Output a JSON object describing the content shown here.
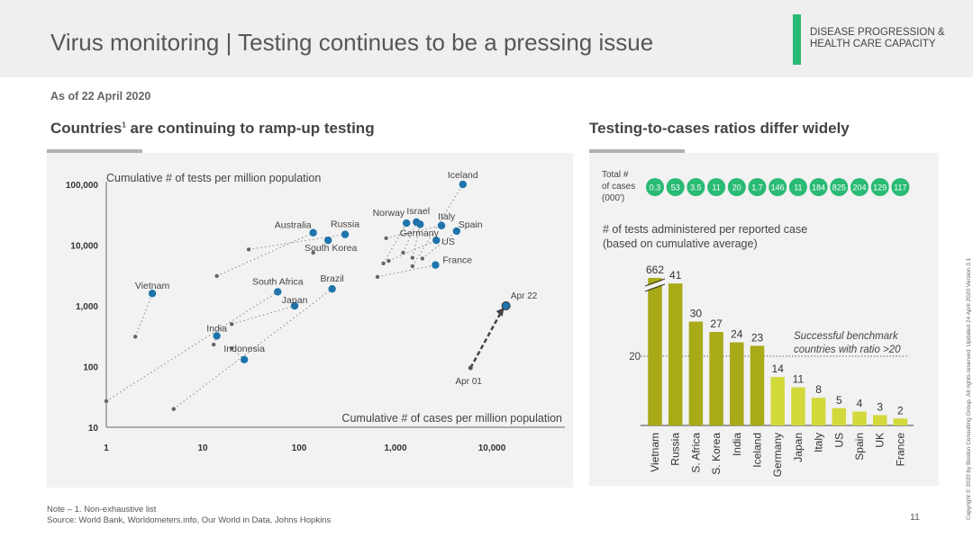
{
  "header": {
    "title": "Virus monitoring | Testing continues to be a pressing issue",
    "section_line1": "DISEASE PROGRESSION &",
    "section_line2": "HEALTH CARE CAPACITY"
  },
  "as_of": "As of 22 April 2020",
  "left_subtitle": "Countries",
  "left_subtitle_sup": "1",
  "left_subtitle_rest": " are continuing to ramp-up testing",
  "right_subtitle": "Testing-to-cases ratios differ widely",
  "footnote_note": "Note – 1. Non-exhaustive list",
  "footnote_source": "Source: World Bank, Worldometers.info, Our World in Data, Johns Hopkins",
  "page_number": "11",
  "copyright": "Copyright © 2020 by Boston Consulting Group. All rights reserved.   Updated 24 April 2020 Version 3.1",
  "colors": {
    "accent_green": "#29ba74",
    "point_blue": "#1f74ab",
    "bar_olive": "#a8aa17",
    "bar_lime": "#d2d93b",
    "case_circle": "#29ba74"
  },
  "chart_data": [
    {
      "type": "scatter",
      "ylabel": "Cumulative # of tests per million population",
      "xlabel": "Cumulative # of cases per million population",
      "x_scale": "log",
      "y_scale": "log",
      "xlim": [
        1,
        10000
      ],
      "ylim": [
        10,
        100000
      ],
      "x_ticks": [
        1,
        10,
        100,
        1000,
        10000
      ],
      "x_tick_labels": [
        "1",
        "10",
        "100",
        "1,000",
        "10,000"
      ],
      "y_ticks": [
        10,
        100,
        1000,
        10000,
        100000
      ],
      "y_tick_labels": [
        "10",
        "100",
        "1,000",
        "10,000",
        "100,000"
      ],
      "countries": [
        {
          "name": "Iceland",
          "prev": [
            1500,
            4500
          ],
          "current": [
            5000,
            100000
          ]
        },
        {
          "name": "Norway",
          "prev": [
            750,
            5000
          ],
          "current": [
            1300,
            23000
          ]
        },
        {
          "name": "Israel",
          "prev": [
            1200,
            7500
          ],
          "current": [
            1650,
            24000
          ]
        },
        {
          "name": "Italy",
          "prev": [
            800,
            13000
          ],
          "current": [
            3000,
            21000
          ]
        },
        {
          "name": "Spain",
          "prev": [
            1900,
            6000
          ],
          "current": [
            4300,
            17000
          ]
        },
        {
          "name": "Germany",
          "prev": [
            1500,
            6200
          ],
          "current": [
            1800,
            22000
          ]
        },
        {
          "name": "US",
          "prev": [
            850,
            5500
          ],
          "current": [
            2650,
            12000
          ]
        },
        {
          "name": "France",
          "prev": [
            650,
            3000
          ],
          "current": [
            2600,
            4700
          ]
        },
        {
          "name": "Australia",
          "prev": [
            14,
            3100
          ],
          "current": [
            140,
            16000
          ]
        },
        {
          "name": "Russia",
          "prev": [
            30,
            8500
          ],
          "current": [
            300,
            15000
          ]
        },
        {
          "name": "South Korea",
          "prev": [
            140,
            7500
          ],
          "current": [
            200,
            12000
          ]
        },
        {
          "name": "South Africa",
          "prev": [
            1,
            27
          ],
          "current": [
            60,
            1700
          ]
        },
        {
          "name": "Brazil",
          "prev": [
            5,
            20
          ],
          "current": [
            220,
            1900
          ]
        },
        {
          "name": "Japan",
          "prev": [
            20,
            500
          ],
          "current": [
            90,
            1000
          ]
        },
        {
          "name": "India",
          "prev": [
            13,
            230
          ],
          "current": [
            14,
            320
          ]
        },
        {
          "name": "Indonesia",
          "prev": [
            20,
            200
          ],
          "current": [
            27,
            130
          ]
        },
        {
          "name": "Vietnam",
          "prev": [
            2,
            310
          ],
          "current": [
            3,
            1600
          ]
        }
      ],
      "annotation_arrow": {
        "start_label": "Apr 01",
        "end_label": "Apr 22",
        "start": [
          6000,
          95
        ],
        "end": [
          14000,
          1000
        ]
      }
    },
    {
      "type": "bar",
      "ylabel": "# of tests administered per reported case",
      "ylabel_line2": "(based on cumulative average)",
      "categories": [
        "Vietnam",
        "Russia",
        "S. Africa",
        "S. Korea",
        "India",
        "Iceland",
        "Germany",
        "Japan",
        "Italy",
        "US",
        "Spain",
        "UK",
        "France"
      ],
      "values": [
        662,
        41,
        30,
        27,
        24,
        23,
        14,
        11,
        8,
        5,
        4,
        3,
        2
      ],
      "value_labels": [
        "662",
        "41",
        "30",
        "27",
        "24",
        "23",
        "14",
        "11",
        "8",
        "5",
        "4",
        "3",
        "2"
      ],
      "above_benchmark": [
        true,
        true,
        true,
        true,
        true,
        true,
        false,
        false,
        false,
        false,
        false,
        false,
        false
      ],
      "broken_axis_value": 662,
      "benchmark": {
        "value": 20,
        "label": "20",
        "text_line1": "Successful benchmark",
        "text_line2": "countries with ratio >20"
      },
      "total_cases_label": [
        "Total #",
        "of cases",
        "(000')"
      ],
      "total_cases": [
        "0.3",
        "53",
        "3.5",
        "11",
        "20",
        "1.7",
        "146",
        "11",
        "184",
        "825",
        "204",
        "129",
        "117"
      ]
    }
  ]
}
